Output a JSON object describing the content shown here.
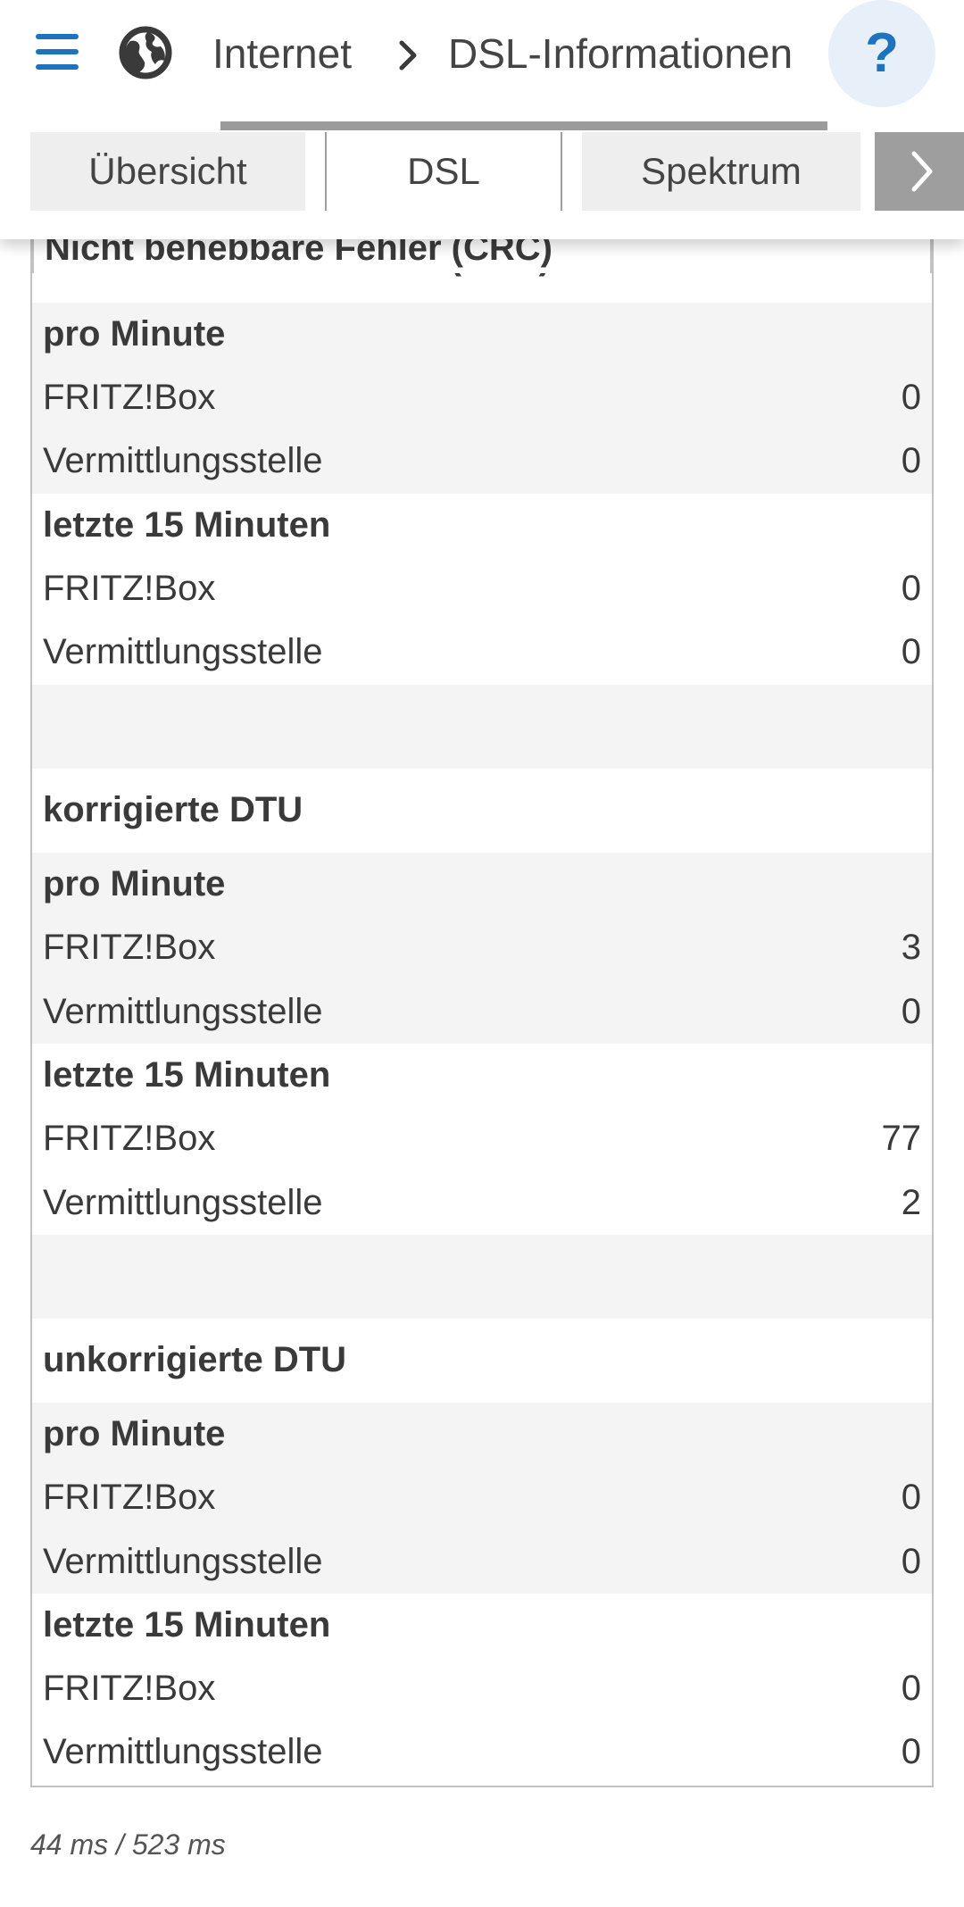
{
  "header": {
    "breadcrumb_root": "Internet",
    "breadcrumb_current": "DSL-Informationen",
    "help_label": "?"
  },
  "tabs": [
    {
      "label": "Übersicht",
      "active": false
    },
    {
      "label": "DSL",
      "active": true
    },
    {
      "label": "Spektrum",
      "active": false
    }
  ],
  "sections": {
    "crc": {
      "title": "Nicht behebbare Fehler (CRC)",
      "per_minute": {
        "heading": "pro Minute",
        "fritzbox_label": "FRITZ!Box",
        "fritzbox_value": "0",
        "exchange_label": "Vermittlungsstelle",
        "exchange_value": "0"
      },
      "last15": {
        "heading": "letzte 15 Minuten",
        "fritzbox_label": "FRITZ!Box",
        "fritzbox_value": "0",
        "exchange_label": "Vermittlungsstelle",
        "exchange_value": "0"
      }
    },
    "corrected_dtu": {
      "title": "korrigierte DTU",
      "per_minute": {
        "heading": "pro Minute",
        "fritzbox_label": "FRITZ!Box",
        "fritzbox_value": "3",
        "exchange_label": "Vermittlungsstelle",
        "exchange_value": "0"
      },
      "last15": {
        "heading": "letzte 15 Minuten",
        "fritzbox_label": "FRITZ!Box",
        "fritzbox_value": "77",
        "exchange_label": "Vermittlungsstelle",
        "exchange_value": "2"
      }
    },
    "uncorrected_dtu": {
      "title": "unkorrigierte DTU",
      "per_minute": {
        "heading": "pro Minute",
        "fritzbox_label": "FRITZ!Box",
        "fritzbox_value": "0",
        "exchange_label": "Vermittlungsstelle",
        "exchange_value": "0"
      },
      "last15": {
        "heading": "letzte 15 Minuten",
        "fritzbox_label": "FRITZ!Box",
        "fritzbox_value": "0",
        "exchange_label": "Vermittlungsstelle",
        "exchange_value": "0"
      }
    }
  },
  "footer": {
    "timing": "44 ms / 523 ms"
  },
  "colors": {
    "accent": "#1e73be",
    "row_gray": "#f4f4f4",
    "border": "#c2c2c2"
  }
}
